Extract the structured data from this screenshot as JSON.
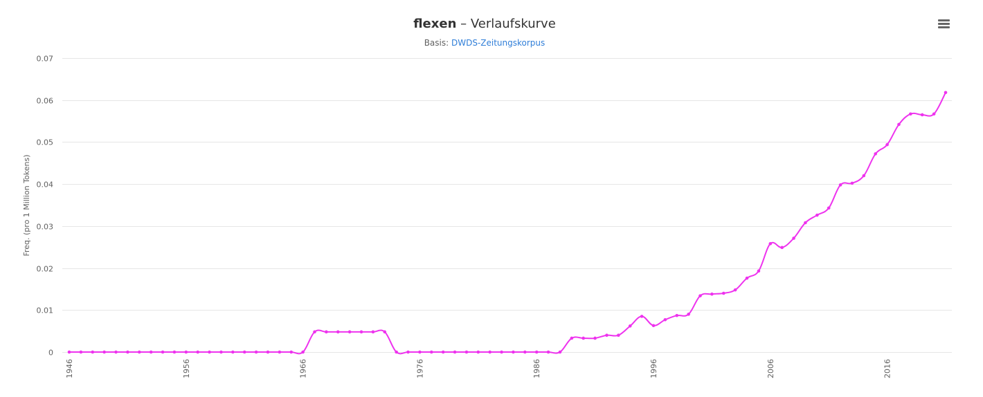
{
  "title": {
    "word": "flexen",
    "rest": " – Verlaufskurve"
  },
  "subtitle": {
    "prefix": "Basis: ",
    "link": "DWDS-Zeitungskorpus"
  },
  "menu": {
    "icon": "hamburger-menu-icon"
  },
  "colors": {
    "series": "#ee33ee",
    "grid": "#e6e6e6",
    "text": "#606060",
    "link": "#2f7ed8"
  },
  "chart_data": {
    "type": "line",
    "title": "flexen – Verlaufskurve",
    "subtitle": "Basis: DWDS-Zeitungskorpus",
    "xlabel": "",
    "ylabel": "Freq. (pro 1 Million Tokens)",
    "xlim": [
      1946,
      2021
    ],
    "ylim": [
      0,
      0.07
    ],
    "grid": true,
    "legend": "none",
    "x_ticks": [
      "1946",
      "1956",
      "1966",
      "1976",
      "1986",
      "1996",
      "2006",
      "2016"
    ],
    "y_ticks": [
      "0",
      "0.01",
      "0.02",
      "0.03",
      "0.04",
      "0.05",
      "0.06",
      "0.07"
    ],
    "x": [
      1946,
      1947,
      1948,
      1949,
      1950,
      1951,
      1952,
      1953,
      1954,
      1955,
      1956,
      1957,
      1958,
      1959,
      1960,
      1961,
      1962,
      1963,
      1964,
      1965,
      1966,
      1967,
      1968,
      1969,
      1970,
      1971,
      1972,
      1973,
      1974,
      1975,
      1976,
      1977,
      1978,
      1979,
      1980,
      1981,
      1982,
      1983,
      1984,
      1985,
      1986,
      1987,
      1988,
      1989,
      1990,
      1991,
      1992,
      1993,
      1994,
      1995,
      1996,
      1997,
      1998,
      1999,
      2000,
      2001,
      2002,
      2003,
      2004,
      2005,
      2006,
      2007,
      2008,
      2009,
      2010,
      2011,
      2012,
      2013,
      2014,
      2015,
      2016,
      2017,
      2018,
      2019,
      2020,
      2021
    ],
    "series": [
      {
        "name": "flexen",
        "values": [
          0,
          0,
          0,
          0,
          0,
          0,
          0,
          0,
          0,
          0,
          0,
          0,
          0,
          0,
          0,
          0,
          0,
          0,
          0,
          0,
          0,
          0.0048,
          0.0048,
          0.0048,
          0.0048,
          0.0048,
          0.0048,
          0.0048,
          0,
          0,
          0,
          0,
          0,
          0,
          0,
          0,
          0,
          0,
          0,
          0,
          0,
          0,
          0,
          0.0033,
          0.0033,
          0.0033,
          0.004,
          0.004,
          0.0062,
          0.0085,
          0.0063,
          0.0077,
          0.0087,
          0.009,
          0.0134,
          0.0138,
          0.014,
          0.0148,
          0.0176,
          0.0193,
          0.0258,
          0.0249,
          0.0271,
          0.0308,
          0.0326,
          0.0343,
          0.0398,
          0.0402,
          0.042,
          0.0472,
          0.0494,
          0.0542,
          0.0567,
          0.0565,
          0.0567,
          0.0618
        ]
      }
    ]
  }
}
